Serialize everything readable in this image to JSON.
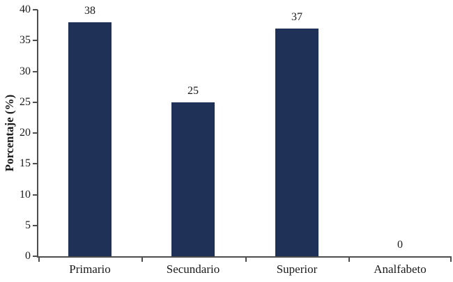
{
  "chart_data": {
    "type": "bar",
    "title": "",
    "categories": [
      "Primario",
      "Secundario",
      "Superior",
      "Analfabeto"
    ],
    "values": [
      38,
      25,
      37,
      0
    ],
    "value_labels": [
      "38",
      "25",
      "37",
      "0"
    ],
    "xlabel": "",
    "ylabel": "Porcentaje (%)",
    "ylim": [
      0,
      40
    ],
    "yticks": [
      0,
      5,
      10,
      15,
      20,
      25,
      30,
      35,
      40
    ],
    "grid": false,
    "legend": "none",
    "bar_color": "#203158",
    "axis_color": "#4d4d4d",
    "text_color": "#1a1a1a",
    "background_color": "#ffffff"
  }
}
